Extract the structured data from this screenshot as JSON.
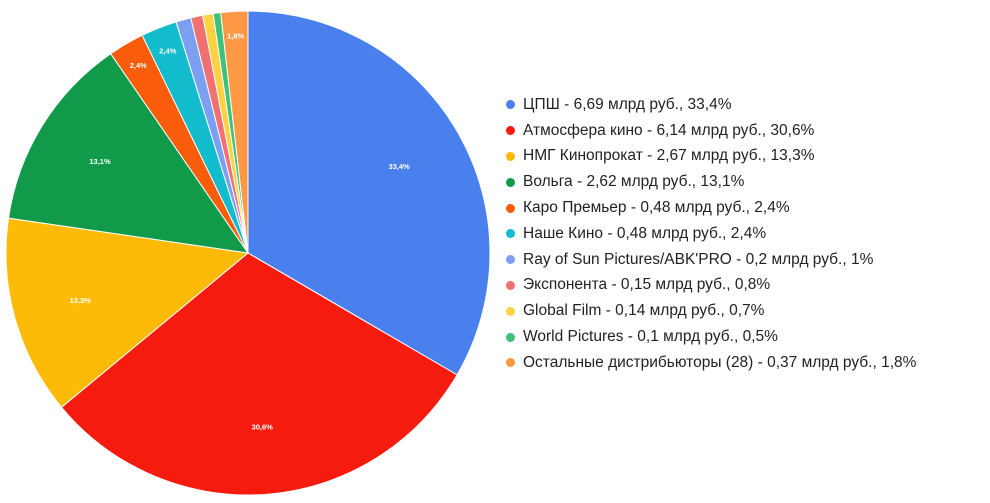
{
  "chart_data": {
    "type": "pie",
    "title": "",
    "legend_position": "right",
    "slices": [
      {
        "label": "ЦПШ - 6,69 млрд руб., 33,4%",
        "value": 33.4,
        "data_label": "33,4%",
        "color": "#4a7fee"
      },
      {
        "label": "Атмосфера кино - 6,14 млрд руб., 30,6%",
        "value": 30.6,
        "data_label": "30,6%",
        "color": "#f51c0f"
      },
      {
        "label": "НМГ Кинопрокат - 2,67 млрд руб., 13,3%",
        "value": 13.3,
        "data_label": "13,3%",
        "color": "#fdbb08"
      },
      {
        "label": "Вольга - 2,62 млрд руб., 13,1%",
        "value": 13.1,
        "data_label": "13,1%",
        "color": "#109a49"
      },
      {
        "label": "Каро Премьер - 0,48 млрд руб., 2,4%",
        "value": 2.4,
        "data_label": "2,4%",
        "color": "#f95c0a"
      },
      {
        "label": "Наше Кино - 0,48 млрд руб., 2,4%",
        "value": 2.4,
        "data_label": "2,4%",
        "color": "#13bccd"
      },
      {
        "label": "Ray of Sun Pictures/ABK'PRO - 0,2 млрд руб., 1%",
        "value": 1.0,
        "data_label": "",
        "color": "#7d9ff2"
      },
      {
        "label": "Экспонента - 0,15 млрд руб., 0,8%",
        "value": 0.8,
        "data_label": "",
        "color": "#f07172"
      },
      {
        "label": "Global Film - 0,14 млрд руб., 0,7%",
        "value": 0.7,
        "data_label": "",
        "color": "#fbd342"
      },
      {
        "label": "World Pictures - 0,1 млрд руб., 0,5%",
        "value": 0.5,
        "data_label": "",
        "color": "#3ec179"
      },
      {
        "label": "Остальные дистрибьюторы (28) - 0,37 млрд руб., 1,8%",
        "value": 1.8,
        "data_label": "1,8%",
        "color": "#fe9844"
      }
    ]
  }
}
